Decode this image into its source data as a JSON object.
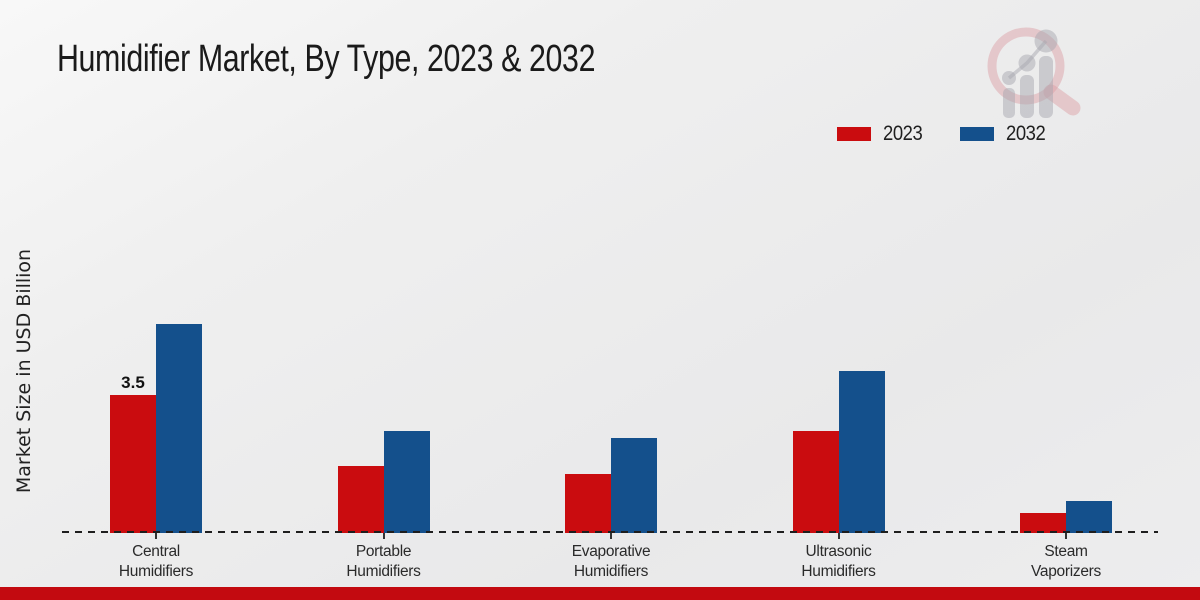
{
  "chart_data": {
    "type": "bar",
    "title": "Humidifier Market, By Type, 2023 & 2032",
    "xlabel": "",
    "ylabel": "Market Size in USD Billion",
    "categories": [
      "Central Humidifiers",
      "Portable Humidifiers",
      "Evaporative Humidifiers",
      "Ultrasonic Humidifiers",
      "Steam Vaporizers"
    ],
    "series": [
      {
        "name": "2023",
        "color": "#ca0c0f",
        "values": [
          3.5,
          1.7,
          1.5,
          2.6,
          0.5
        ]
      },
      {
        "name": "2032",
        "color": "#14508c",
        "values": [
          5.3,
          2.6,
          2.4,
          4.1,
          0.8
        ]
      }
    ],
    "data_labels": [
      {
        "text": "3.5",
        "series_index": 0,
        "category_index": 0
      }
    ],
    "ylim": [
      0,
      6
    ],
    "grid": false,
    "legend_position": "top-right",
    "baseline_style": "dashed",
    "y_axis_ticks_shown": false
  },
  "legend": {
    "items": [
      {
        "label": "2023",
        "color": "#ca0c0f"
      },
      {
        "label": "2032",
        "color": "#14508c"
      }
    ]
  },
  "footer": {
    "band_color": "#c30a10"
  },
  "watermark": {
    "icon": "magnifier-bar-chart-logo-watermark"
  }
}
